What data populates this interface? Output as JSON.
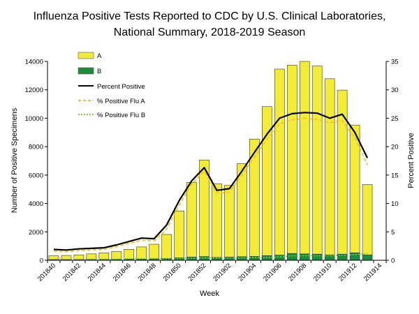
{
  "chart_data": {
    "type": "bar",
    "title_line1": "Influenza Positive Tests Reported to CDC by U.S. Clinical Laboratories,",
    "title_line2": "National Summary, 2018-2019 Season",
    "xlabel": "Week",
    "ylabel_left": "Number of Positive Specimens",
    "ylabel_right": "Percent Positive",
    "ylim_left": [
      0,
      14000
    ],
    "ylim_right": [
      0,
      35
    ],
    "yticks_left": [
      "0",
      "2000",
      "4000",
      "6000",
      "8000",
      "10000",
      "12000",
      "14000"
    ],
    "yticks_right": [
      "0",
      "5",
      "10",
      "15",
      "20",
      "25",
      "30",
      "35"
    ],
    "weeks": [
      "201840",
      "201841",
      "201842",
      "201843",
      "201844",
      "201845",
      "201846",
      "201847",
      "201848",
      "201849",
      "201850",
      "201851",
      "201852",
      "201901",
      "201902",
      "201903",
      "201904",
      "201905",
      "201906",
      "201907",
      "201908",
      "201909",
      "201910",
      "201911",
      "201912",
      "201913",
      "201914"
    ],
    "x_tick_labels": [
      "201840",
      "201842",
      "201844",
      "201846",
      "201848",
      "201850",
      "201852",
      "201902",
      "201904",
      "201906",
      "201908",
      "201910",
      "201912",
      "201914"
    ],
    "series": [
      {
        "name": "A",
        "color": "#f2ec38",
        "values": [
          280,
          300,
          340,
          400,
          470,
          560,
          700,
          860,
          1030,
          1700,
          3300,
          5250,
          6800,
          5180,
          5050,
          6550,
          8250,
          10500,
          13100,
          13250,
          13550,
          13250,
          12400,
          11550,
          9000,
          4950,
          null
        ]
      },
      {
        "name": "B",
        "color": "#1a8c3c",
        "values": [
          40,
          40,
          40,
          50,
          50,
          60,
          70,
          80,
          100,
          120,
          170,
          230,
          260,
          200,
          220,
          250,
          280,
          320,
          360,
          480,
          450,
          430,
          380,
          430,
          520,
          380,
          null
        ]
      },
      {
        "name": "Percent Positive",
        "color": "#000000",
        "values": [
          1.9,
          1.8,
          2.0,
          2.1,
          2.2,
          2.7,
          3.3,
          3.9,
          3.8,
          6.2,
          10.5,
          14.0,
          16.3,
          12.3,
          12.6,
          15.7,
          19.0,
          22.2,
          25.0,
          25.8,
          26.0,
          25.9,
          25.0,
          25.7,
          22.5,
          18.0,
          null
        ]
      },
      {
        "name": "% Positive Flu A",
        "color": "#f0c230",
        "values": [
          1.6,
          1.5,
          1.7,
          1.8,
          1.9,
          2.4,
          3.0,
          3.5,
          3.4,
          5.5,
          9.7,
          13.4,
          15.7,
          11.8,
          12.0,
          15.0,
          18.2,
          21.3,
          24.0,
          24.7,
          25.0,
          24.8,
          24.2,
          24.6,
          21.5,
          16.8,
          null
        ]
      },
      {
        "name": "% Positive Flu B",
        "color": "#7acc40",
        "values": [
          0.2,
          0.2,
          0.2,
          0.2,
          0.2,
          0.2,
          0.3,
          0.3,
          0.3,
          0.3,
          0.3,
          0.4,
          0.4,
          0.4,
          0.4,
          0.4,
          0.5,
          0.5,
          0.6,
          0.8,
          0.8,
          0.8,
          0.8,
          0.9,
          1.0,
          1.2,
          null
        ]
      }
    ]
  }
}
